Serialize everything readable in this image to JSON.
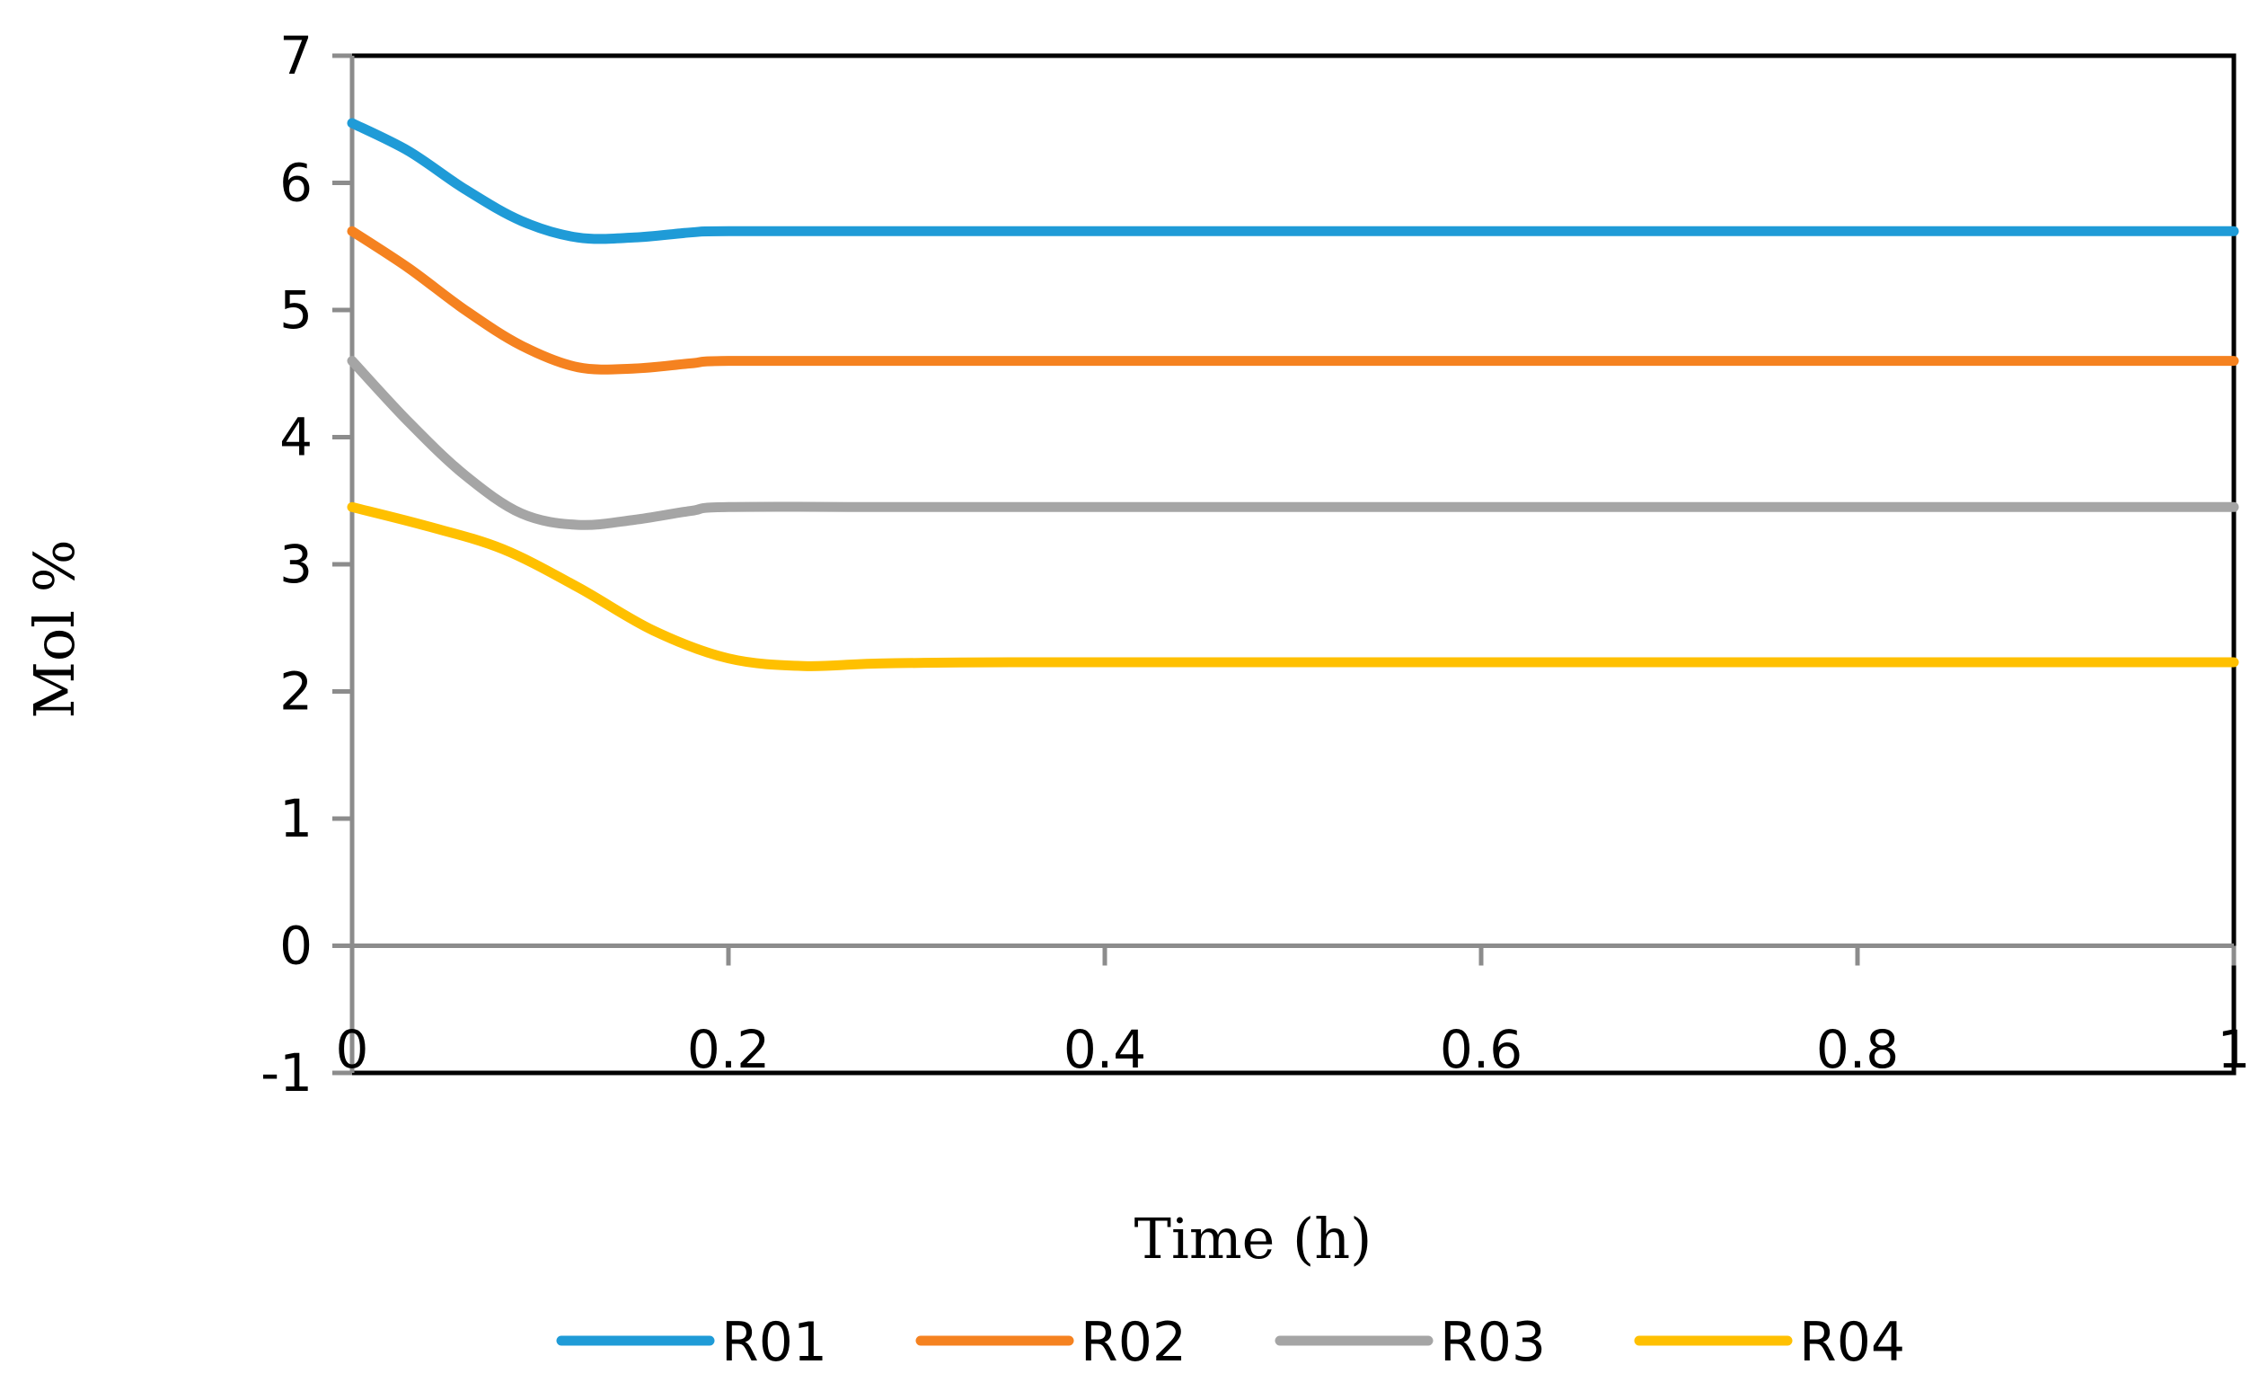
{
  "chart_data": {
    "type": "line",
    "title": "",
    "xlabel": "Time (h)",
    "ylabel": "Mol %",
    "xlim": [
      0,
      1
    ],
    "ylim": [
      -1,
      7
    ],
    "x_ticks": [
      0,
      0.2,
      0.4,
      0.6,
      0.8,
      1
    ],
    "x_tick_labels": [
      "0",
      "0.2",
      "0.4",
      "0.6",
      "0.8",
      "1"
    ],
    "y_ticks": [
      -1,
      0,
      1,
      2,
      3,
      4,
      5,
      6,
      7
    ],
    "y_tick_labels": [
      "-1",
      "0",
      "1",
      "2",
      "3",
      "4",
      "5",
      "6",
      "7"
    ],
    "legend_position": "bottom",
    "grid": false,
    "series": [
      {
        "name": "R01",
        "color": "#1f9bd7",
        "x": [
          0,
          0.03,
          0.06,
          0.09,
          0.12,
          0.15,
          0.18,
          0.2,
          0.3,
          0.5,
          0.7,
          1
        ],
        "y": [
          6.47,
          6.25,
          5.95,
          5.7,
          5.57,
          5.57,
          5.61,
          5.62,
          5.62,
          5.62,
          5.62,
          5.62
        ]
      },
      {
        "name": "R02",
        "color": "#f58220",
        "x": [
          0,
          0.03,
          0.06,
          0.09,
          0.12,
          0.15,
          0.18,
          0.2,
          0.3,
          0.5,
          0.7,
          1
        ],
        "y": [
          5.62,
          5.33,
          5.0,
          4.72,
          4.55,
          4.54,
          4.58,
          4.6,
          4.6,
          4.6,
          4.6,
          4.6
        ]
      },
      {
        "name": "R03",
        "color": "#a5a5a5",
        "x": [
          0,
          0.03,
          0.06,
          0.09,
          0.12,
          0.15,
          0.18,
          0.2,
          0.3,
          0.5,
          0.7,
          1
        ],
        "y": [
          4.6,
          4.12,
          3.7,
          3.4,
          3.31,
          3.35,
          3.42,
          3.45,
          3.45,
          3.45,
          3.45,
          3.45
        ]
      },
      {
        "name": "R04",
        "color": "#ffc000",
        "x": [
          0,
          0.04,
          0.08,
          0.12,
          0.16,
          0.2,
          0.24,
          0.28,
          0.35,
          0.5,
          0.7,
          1
        ],
        "y": [
          3.45,
          3.3,
          3.12,
          2.82,
          2.48,
          2.26,
          2.2,
          2.22,
          2.23,
          2.23,
          2.23,
          2.23
        ]
      }
    ]
  }
}
